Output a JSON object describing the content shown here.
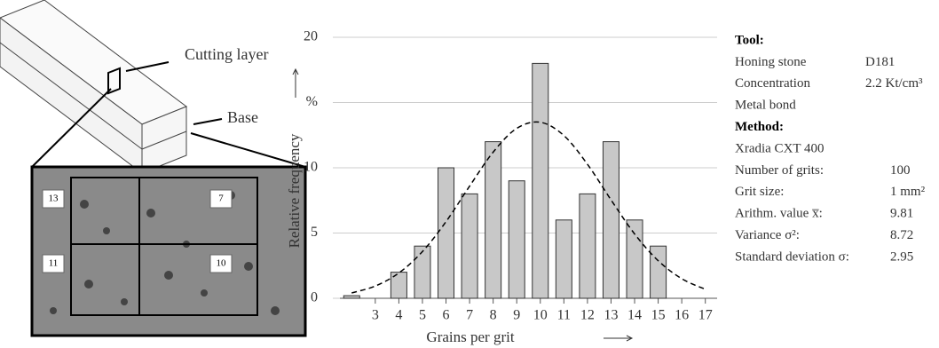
{
  "chart_data": {
    "type": "bar",
    "x": [
      2,
      4,
      5,
      6,
      7,
      8,
      9,
      10,
      11,
      12,
      13,
      14,
      15
    ],
    "values": [
      0.2,
      2,
      4,
      10,
      8,
      12,
      9,
      18,
      6,
      8,
      12,
      6,
      4
    ],
    "color": "#c8c8c8",
    "xlim": [
      1.5,
      17.5
    ],
    "xticks": [
      3,
      4,
      5,
      6,
      7,
      8,
      9,
      10,
      11,
      12,
      13,
      14,
      15,
      16,
      17
    ],
    "ylim": [
      0,
      20
    ],
    "yticks": [
      0,
      5,
      10,
      {
        "value": 15,
        "label": "%"
      },
      20
    ],
    "grid": true,
    "xlabel": "Grains per grit",
    "ylabel": "Relative frequency",
    "curve": {
      "x": [
        2,
        3,
        4,
        5,
        6,
        7,
        8,
        9,
        10,
        11,
        12,
        13,
        14,
        15,
        16,
        17
      ],
      "values": [
        0.41,
        0.94,
        1.94,
        3.58,
        5.87,
        8.59,
        11.2,
        13.02,
        13.49,
        12.47,
        10.27,
        7.54,
        4.93,
        2.88,
        1.5,
        0.69
      ]
    }
  },
  "diagram": {
    "labels": [
      "Cutting layer",
      "Base"
    ],
    "cells": [
      "13",
      "7",
      "11",
      "10"
    ]
  },
  "info": {
    "rows": [
      {
        "label": "Tool:",
        "head": true
      },
      {
        "label": "Honing stone",
        "value": "D181"
      },
      {
        "label": "Concentration",
        "value": "2.2 Kt/cm³"
      },
      {
        "label": "Metal bond"
      },
      {
        "label": "Method:",
        "head": true
      },
      {
        "label": "Xradia CXT 400"
      },
      {
        "label": "Number of grits:",
        "value": "100"
      },
      {
        "label": "Grit size:",
        "value": "1 mm²"
      },
      {
        "label": "Arithm. value x̅:",
        "value": "9.81"
      },
      {
        "label": "Variance σ²:",
        "value": "8.72"
      },
      {
        "label": "Standard deviation  σ:",
        "value": "2.95"
      }
    ]
  }
}
